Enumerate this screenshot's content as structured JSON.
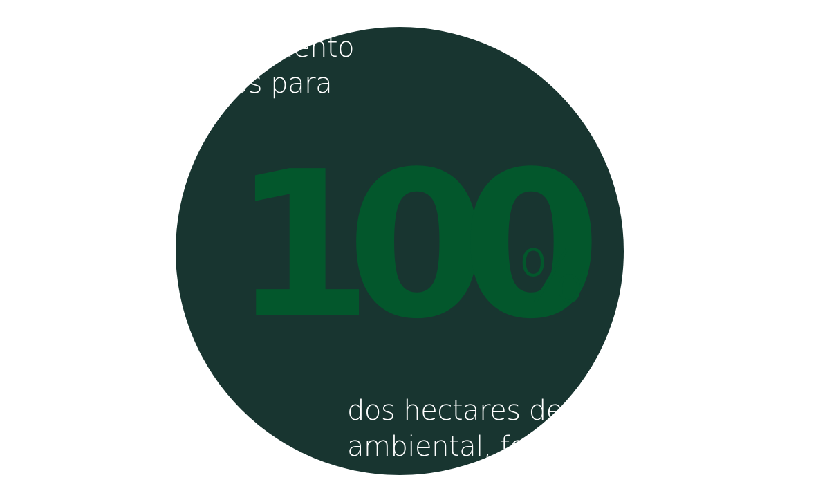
{
  "colors": {
    "page_background": "#ffffff",
    "circle_fill": "#183530",
    "number_color": "#03572c",
    "text_color": "#ffffff"
  },
  "top_text": {
    "line1": "envolvimento",
    "line2": "urados para"
  },
  "stat": {
    "value": "100",
    "unit": "%"
  },
  "bottom_text": {
    "line1": "dos hectares de",
    "line2": "ambiental, fo"
  }
}
